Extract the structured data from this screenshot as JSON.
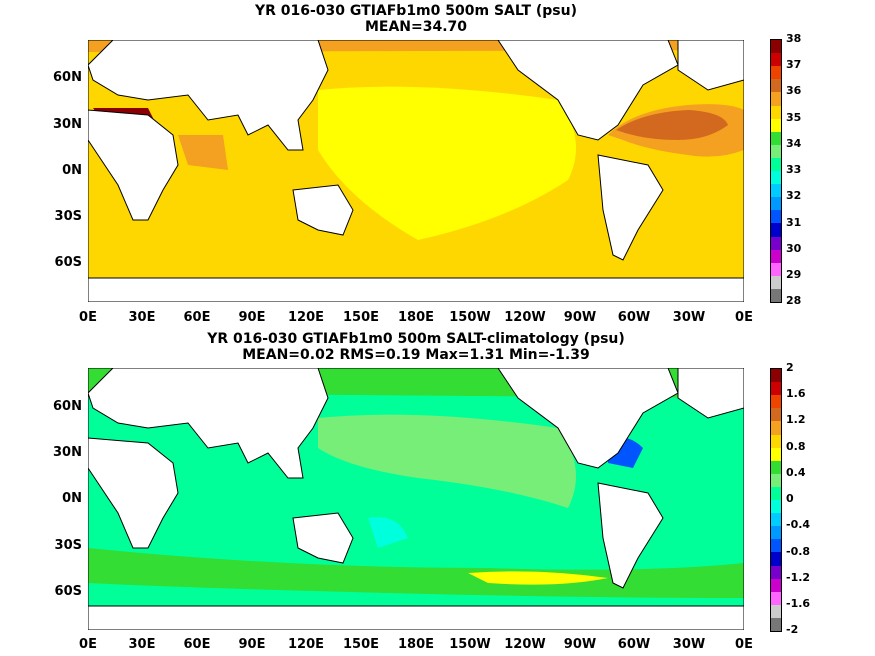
{
  "panels": [
    {
      "title_line1": "YR 016-030 GTIAFb1m0 500m SALT (psu)",
      "title_line2": "MEAN=34.70",
      "colorbar_labels": [
        "38",
        "37",
        "36",
        "35",
        "34",
        "33",
        "32",
        "31",
        "30",
        "29",
        "28"
      ],
      "colorbar_colors": [
        "#8b0000",
        "#cc0000",
        "#ee4400",
        "#d2691e",
        "#f4a020",
        "#ffd700",
        "#ffff00",
        "#33dd33",
        "#77ee77",
        "#00ff99",
        "#00ffdd",
        "#00ccff",
        "#0099ff",
        "#0055ff",
        "#0000cc",
        "#7700cc",
        "#cc00cc",
        "#ff66ff",
        "#cccccc",
        "#777777"
      ]
    },
    {
      "title_line1": "YR 016-030 GTIAFb1m0 500m SALT-climatology (psu)",
      "title_line2": "MEAN=0.02   RMS=0.19   Max=1.31   Min=-1.39",
      "colorbar_labels": [
        "2",
        "1.6",
        "1.2",
        "0.8",
        "0.4",
        "0",
        "-0.4",
        "-0.8",
        "-1.2",
        "-1.6",
        "-2"
      ],
      "colorbar_colors": [
        "#8b0000",
        "#cc0000",
        "#ee4400",
        "#d2691e",
        "#f4a020",
        "#ffd700",
        "#ffff00",
        "#33dd33",
        "#77ee77",
        "#00ff99",
        "#00ffdd",
        "#00ccff",
        "#0099ff",
        "#0055ff",
        "#0000cc",
        "#7700cc",
        "#cc00cc",
        "#ff66ff",
        "#cccccc",
        "#777777"
      ]
    }
  ],
  "lat_labels": [
    "60N",
    "30N",
    "0N",
    "30S",
    "60S"
  ],
  "lon_labels": [
    "0E",
    "30E",
    "60E",
    "90E",
    "120E",
    "150E",
    "180E",
    "150W",
    "120W",
    "90W",
    "60W",
    "30W",
    "0E"
  ]
}
